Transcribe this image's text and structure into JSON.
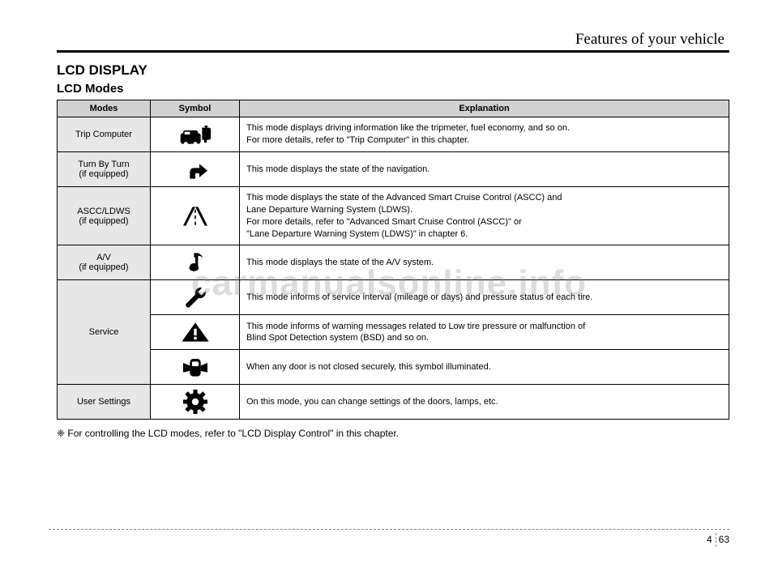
{
  "chapter": "Features of your vehicle",
  "section_title": "LCD DISPLAY",
  "subsection_title": "LCD Modes",
  "table": {
    "headers": [
      "Modes",
      "Symbol",
      "Explanation"
    ],
    "rows": [
      {
        "mode": "Trip Computer",
        "explanation": "This mode displays driving information like the tripmeter, fuel economy, and so on.\nFor more details, refer to \"Trip Computer\" in this chapter."
      },
      {
        "mode": "Turn By Turn\n(if equipped)",
        "explanation": "This mode displays the state of the navigation."
      },
      {
        "mode": "ASCC/LDWS\n(if equipped)",
        "explanation": "This mode displays the state of the Advanced Smart Cruise Control (ASCC) and\nLane Departure Warning System (LDWS).\nFor more details, refer to \"Advanced Smart Cruise Control (ASCC)\" or\n\"Lane Departure Warning System (LDWS)\" in chapter 6."
      },
      {
        "mode": "A/V\n(if equipped)",
        "explanation": "This mode displays the state of the A/V system."
      },
      {
        "mode": "Service",
        "sub": [
          "This mode informs of service interval (mileage or days) and pressure status of each tire.",
          "This mode informs of warning messages related to Low tire pressure or malfunction of\nBlind Spot Detection system (BSD) and so on.",
          "When any door is not closed securely, this symbol illuminated."
        ]
      },
      {
        "mode": "User Settings",
        "explanation": "On this mode, you can change settings of the doors, lamps, etc."
      }
    ]
  },
  "footnote": "❈ For controlling the LCD modes, refer to \"LCD Display Control\" in this chapter.",
  "page_chapter": "4",
  "page_number": "63",
  "watermark": "carmanualsonline.info",
  "colors": {
    "header_bg": "#d2d2d2",
    "mode_bg": "#e7e7e7",
    "border": "#000000"
  }
}
